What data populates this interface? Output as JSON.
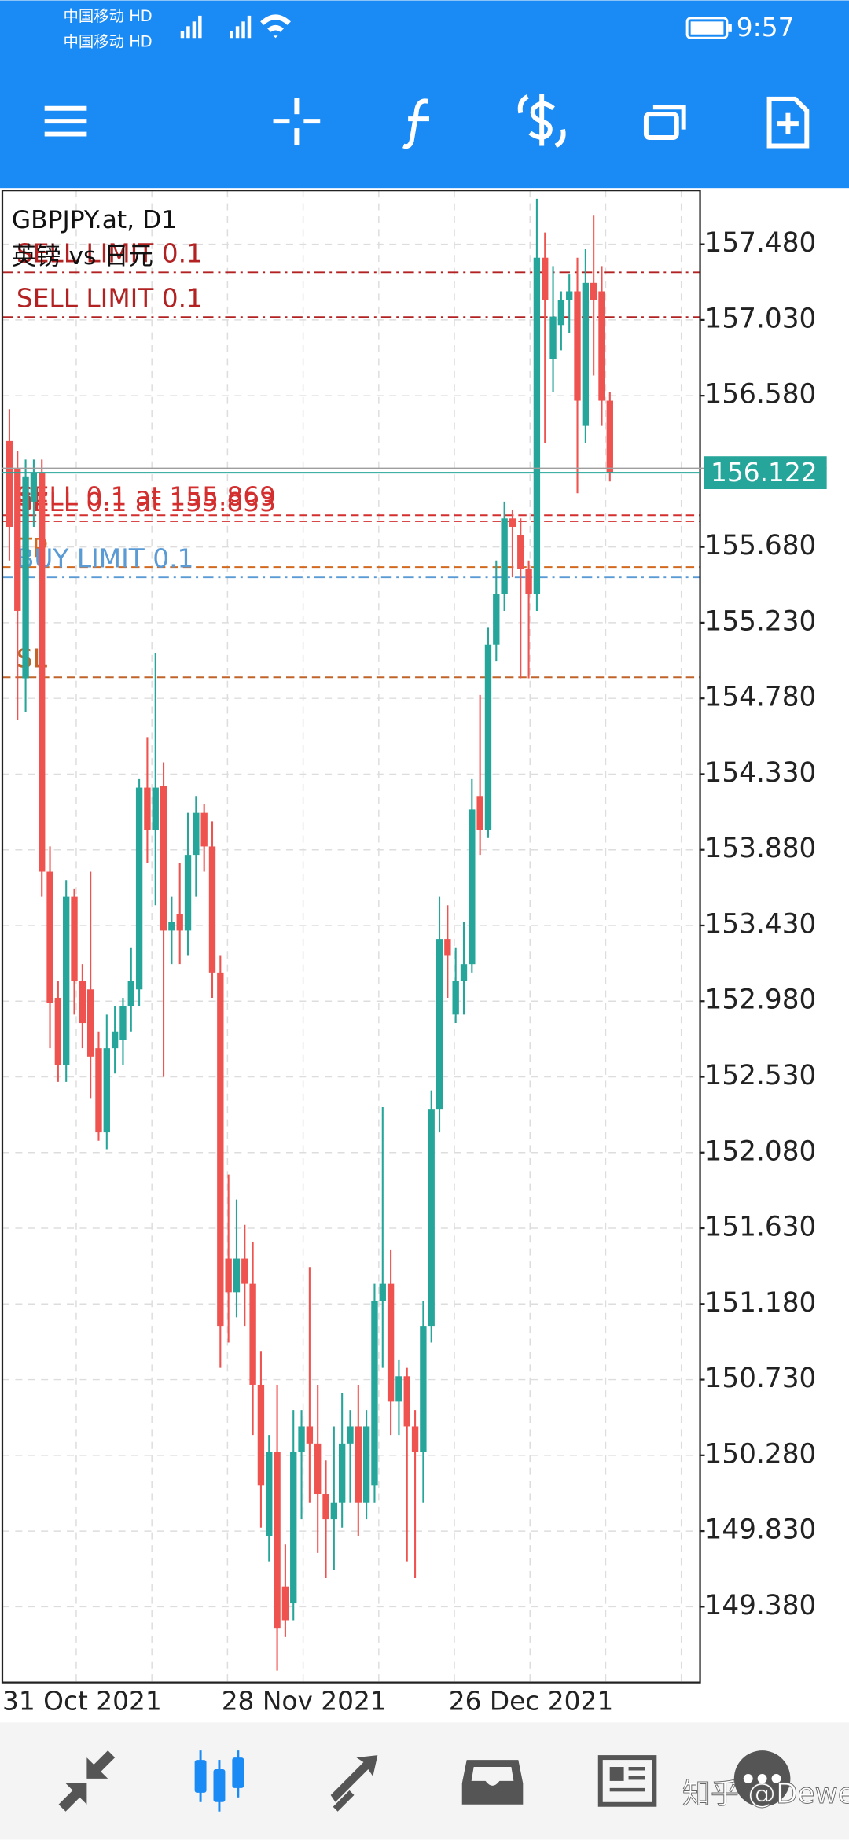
{
  "status_bar": {
    "carriers": [
      "中国移动 HD",
      "中国移动 HD"
    ],
    "time": "9:57"
  },
  "chart_data": {
    "type": "candlestick",
    "title": "GBPJPY.at, D1",
    "subtitle": "英镑 vs 日元",
    "categories": [
      "31 Oct 2021",
      null,
      null,
      null,
      null,
      null,
      null,
      null,
      null,
      null,
      null,
      null,
      null,
      null,
      null,
      null,
      null,
      null,
      null,
      null,
      null,
      null,
      null,
      null,
      null,
      null,
      null,
      "28 Nov 2021",
      null,
      null,
      null,
      null,
      null,
      null,
      null,
      null,
      null,
      null,
      null,
      null,
      null,
      null,
      null,
      null,
      null,
      null,
      null,
      null,
      null,
      null,
      null,
      null,
      null,
      null,
      null,
      "26 Dec 2021",
      null,
      null,
      null,
      null,
      null,
      null,
      null,
      null,
      null,
      null,
      null,
      null,
      null,
      null,
      null,
      null,
      null,
      null,
      null
    ],
    "open": [
      156.31,
      156.15,
      154.9,
      155.95,
      156.12,
      153.75,
      153.0,
      152.6,
      153.6,
      153.1,
      153.05,
      152.7,
      152.2,
      152.7,
      152.75,
      152.95,
      153.05,
      154.25,
      154.0,
      154.26,
      153.4,
      153.5,
      153.4,
      153.85,
      154.1,
      153.9,
      153.15,
      151.45,
      151.25,
      151.45,
      151.3,
      150.7,
      149.8,
      150.3,
      149.5,
      149.4,
      150.3,
      150.45,
      150.35,
      150.05,
      149.9,
      150.0,
      150.35,
      150.45,
      150.0,
      150.1,
      151.2,
      151.3,
      150.6,
      150.75,
      150.45,
      150.3,
      151.05,
      152.34,
      153.35,
      152.9,
      153.1,
      153.2,
      154.2,
      154.0,
      155.1,
      155.4,
      155.85,
      155.75,
      155.55,
      155.4,
      157.4,
      156.8,
      157.0,
      157.15,
      157.2,
      156.4,
      157.25,
      157.2,
      156.55
    ],
    "high": [
      156.5,
      156.25,
      156.2,
      156.2,
      156.2,
      153.9,
      153.1,
      153.7,
      153.65,
      153.2,
      153.75,
      152.8,
      152.9,
      152.95,
      153.0,
      153.3,
      154.3,
      154.55,
      155.05,
      154.4,
      153.6,
      153.8,
      154.1,
      154.2,
      154.15,
      154.05,
      153.25,
      151.95,
      151.8,
      151.65,
      151.55,
      150.9,
      150.4,
      150.7,
      149.75,
      150.55,
      150.55,
      151.4,
      150.7,
      150.25,
      150.45,
      150.65,
      150.55,
      150.7,
      150.55,
      151.3,
      152.35,
      151.5,
      150.85,
      150.8,
      150.55,
      151.2,
      152.45,
      153.6,
      153.55,
      153.3,
      153.45,
      154.3,
      154.8,
      155.2,
      155.6,
      155.95,
      155.9,
      155.85,
      155.6,
      157.75,
      157.55,
      157.35,
      157.2,
      157.3,
      157.4,
      157.45,
      157.65,
      157.35,
      156.6
    ],
    "low": [
      155.6,
      154.65,
      154.7,
      155.8,
      153.6,
      152.7,
      152.5,
      152.5,
      152.9,
      152.7,
      152.4,
      152.15,
      152.1,
      152.55,
      152.6,
      152.8,
      152.95,
      153.8,
      153.55,
      152.53,
      153.2,
      153.2,
      153.25,
      153.6,
      153.75,
      153.0,
      150.8,
      150.95,
      151.1,
      151.05,
      150.4,
      149.85,
      149.65,
      149.0,
      149.2,
      149.3,
      149.9,
      150.0,
      149.7,
      149.55,
      149.6,
      149.85,
      150.0,
      149.8,
      149.9,
      150.0,
      150.8,
      150.4,
      150.4,
      149.65,
      149.55,
      150.0,
      150.95,
      152.2,
      153.0,
      152.85,
      152.9,
      153.15,
      153.85,
      153.95,
      155.0,
      155.3,
      155.5,
      154.9,
      154.9,
      155.3,
      156.3,
      156.6,
      156.85,
      156.95,
      156.0,
      156.3,
      156.7,
      156.4,
      156.07
    ],
    "close": [
      155.8,
      155.3,
      156.1,
      156.12,
      153.75,
      152.97,
      152.6,
      153.6,
      153.1,
      152.85,
      152.65,
      152.2,
      152.7,
      152.8,
      152.95,
      153.1,
      154.25,
      154.0,
      154.25,
      153.4,
      153.45,
      153.4,
      153.85,
      154.1,
      153.9,
      153.15,
      151.05,
      151.25,
      151.45,
      151.3,
      150.7,
      150.1,
      150.3,
      149.25,
      149.3,
      150.3,
      150.45,
      150.35,
      150.05,
      149.9,
      150.0,
      150.35,
      150.45,
      150.0,
      150.45,
      151.2,
      151.3,
      150.6,
      150.75,
      150.45,
      150.3,
      151.05,
      152.34,
      153.35,
      153.25,
      153.1,
      153.2,
      154.12,
      154.0,
      155.1,
      155.4,
      155.85,
      155.8,
      155.55,
      155.4,
      157.4,
      157.15,
      157.05,
      157.15,
      157.2,
      156.55,
      157.25,
      157.15,
      156.55,
      156.12
    ],
    "up_color": "#26a69a",
    "down_color": "#ef5350",
    "ylim": [
      148.93,
      157.8
    ],
    "yticks": [
      {
        "value": 157.48,
        "label": "157.480"
      },
      {
        "value": 157.03,
        "label": "157.030"
      },
      {
        "value": 156.58,
        "label": "156.580"
      },
      {
        "value": 155.68,
        "label": "155.680"
      },
      {
        "value": 155.23,
        "label": "155.230"
      },
      {
        "value": 154.78,
        "label": "154.780"
      },
      {
        "value": 154.33,
        "label": "154.330"
      },
      {
        "value": 153.88,
        "label": "153.880"
      },
      {
        "value": 153.43,
        "label": "153.430"
      },
      {
        "value": 152.98,
        "label": "152.980"
      },
      {
        "value": 152.53,
        "label": "152.530"
      },
      {
        "value": 152.08,
        "label": "152.080"
      },
      {
        "value": 151.63,
        "label": "151.630"
      },
      {
        "value": 151.18,
        "label": "151.180"
      },
      {
        "value": 150.73,
        "label": "150.730"
      },
      {
        "value": 150.28,
        "label": "150.280"
      },
      {
        "value": 149.83,
        "label": "149.830"
      },
      {
        "value": 149.38,
        "label": "149.380"
      }
    ],
    "grid": true,
    "levels": [
      {
        "label": "SELL LIMIT 0.1",
        "value": 157.313,
        "color": "#b22222",
        "style": "dashdot"
      },
      {
        "label": "SELL LIMIT 0.1",
        "value": 157.047,
        "color": "#b22222",
        "style": "dashdot"
      },
      {
        "label": "SELL 0.1 at 155.869",
        "value": 155.869,
        "color": "#d32f2f",
        "style": "dashed"
      },
      {
        "label": "SELL 0.1 at 155.833",
        "value": 155.833,
        "color": "#d32f2f",
        "style": "dashed"
      },
      {
        "label": "TP",
        "value": 155.561,
        "color": "#d2691e",
        "style": "dashed"
      },
      {
        "label": "BUY LIMIT 0.1",
        "value": 155.5,
        "color": "#5b9bd5",
        "style": "dashdot"
      },
      {
        "label": "SL",
        "value": 154.906,
        "color": "#c0642a",
        "style": "dashed"
      }
    ],
    "bid_line": 156.148,
    "last_price": {
      "value": 156.122,
      "label": "156.122"
    }
  },
  "watermark": "知乎 @Dewen"
}
